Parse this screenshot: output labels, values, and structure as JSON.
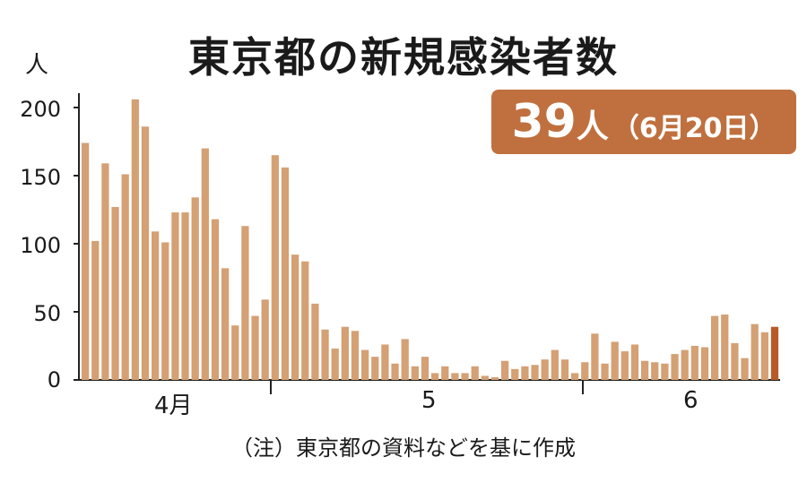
{
  "chart_data": {
    "type": "bar",
    "title": "東京都の新規感染者数",
    "ylabel": "人",
    "ylim": [
      0,
      200
    ],
    "yticks": [
      0,
      50,
      100,
      150,
      200
    ],
    "xtick_labels": [
      "4月",
      "5",
      "6"
    ],
    "callout": {
      "value": "39",
      "unit": "人",
      "date": "（6月20日）"
    },
    "note": "（注）東京都の資料などを基に作成",
    "colors": {
      "bar": "#d4a074",
      "highlight": "#b85a28",
      "callout_bg": "#c0703e"
    },
    "values": [
      174,
      102,
      159,
      127,
      151,
      206,
      186,
      109,
      101,
      123,
      123,
      134,
      170,
      118,
      82,
      40,
      113,
      47,
      59,
      165,
      156,
      92,
      87,
      56,
      37,
      23,
      39,
      36,
      22,
      17,
      26,
      12,
      30,
      10,
      17,
      5,
      10,
      5,
      5,
      10,
      3,
      2,
      14,
      8,
      10,
      11,
      15,
      22,
      15,
      5,
      13,
      34,
      12,
      28,
      21,
      26,
      14,
      13,
      12,
      19,
      22,
      25,
      24,
      47,
      48,
      27,
      16,
      41,
      35,
      39
    ],
    "highlight_last": true
  }
}
